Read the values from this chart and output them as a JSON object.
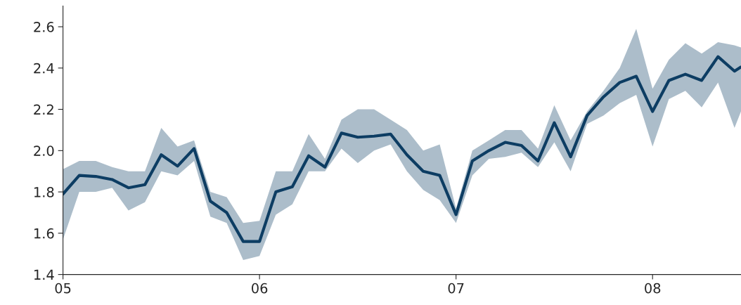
{
  "chart_data": {
    "type": "line",
    "x": [
      2005.0,
      2005.083,
      2005.167,
      2005.25,
      2005.333,
      2005.417,
      2005.5,
      2005.583,
      2005.667,
      2005.75,
      2005.833,
      2005.917,
      2006.0,
      2006.083,
      2006.167,
      2006.25,
      2006.333,
      2006.417,
      2006.5,
      2006.583,
      2006.667,
      2006.75,
      2006.833,
      2006.917,
      2007.0,
      2007.083,
      2007.167,
      2007.25,
      2007.333,
      2007.417,
      2007.5,
      2007.583,
      2007.667,
      2007.75,
      2007.833,
      2007.917,
      2008.0,
      2008.083,
      2008.167,
      2008.25,
      2008.333,
      2008.417,
      2008.45
    ],
    "series": [
      {
        "color": "#0d3d63",
        "values": [
          1.79,
          1.88,
          1.875,
          1.86,
          1.82,
          1.835,
          1.98,
          1.925,
          2.01,
          1.755,
          1.7,
          1.56,
          1.56,
          1.8,
          1.825,
          1.975,
          1.92,
          2.085,
          2.065,
          2.07,
          2.08,
          1.98,
          1.9,
          1.88,
          1.69,
          1.95,
          2.0,
          2.04,
          2.025,
          1.95,
          2.135,
          1.97,
          2.17,
          2.26,
          2.33,
          2.36,
          2.19,
          2.34,
          2.37,
          2.34,
          2.455,
          2.385,
          2.405
        ],
        "upper": [
          1.91,
          1.95,
          1.95,
          1.92,
          1.9,
          1.9,
          2.11,
          2.02,
          2.05,
          1.8,
          1.775,
          1.65,
          1.66,
          1.9,
          1.9,
          2.08,
          1.96,
          2.15,
          2.2,
          2.2,
          2.15,
          2.1,
          2.0,
          2.03,
          1.72,
          2.0,
          2.05,
          2.1,
          2.1,
          2.01,
          2.22,
          2.05,
          2.19,
          2.29,
          2.4,
          2.59,
          2.3,
          2.44,
          2.52,
          2.47,
          2.525,
          2.51,
          2.5
        ],
        "lower": [
          1.57,
          1.8,
          1.8,
          1.82,
          1.71,
          1.75,
          1.9,
          1.88,
          1.95,
          1.68,
          1.65,
          1.47,
          1.49,
          1.69,
          1.74,
          1.9,
          1.9,
          2.01,
          1.94,
          2.0,
          2.03,
          1.9,
          1.81,
          1.76,
          1.65,
          1.88,
          1.96,
          1.97,
          1.99,
          1.92,
          2.04,
          1.9,
          2.13,
          2.17,
          2.23,
          2.27,
          2.02,
          2.25,
          2.29,
          2.21,
          2.33,
          2.11,
          2.19
        ]
      }
    ],
    "xlim": [
      2005.0,
      2008.45
    ],
    "xticks": [
      {
        "value": 2005,
        "label": "05"
      },
      {
        "value": 2006,
        "label": "06"
      },
      {
        "value": 2007,
        "label": "07"
      },
      {
        "value": 2008,
        "label": "08"
      }
    ],
    "ylim": [
      1.4,
      2.7
    ],
    "yticks": [
      1.4,
      1.6,
      1.8,
      {
        "value": 2.0,
        "label": "2.0"
      },
      2.2,
      2.4,
      2.6
    ],
    "grid": false,
    "legend": false,
    "marker": "none",
    "line_style": "solid"
  }
}
